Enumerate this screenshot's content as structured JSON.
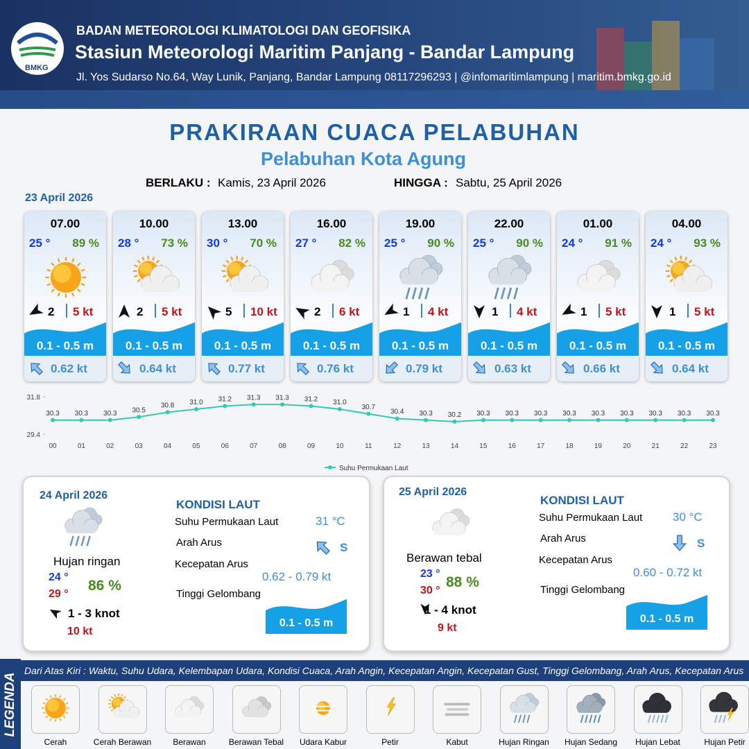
{
  "header": {
    "org": "BADAN METEOROLOGI KLIMATOLOGI DAN GEOFISIKA",
    "station": "Stasiun Meteorologi Maritim Panjang - Bandar Lampung",
    "address": "Jl. Yos Sudarso No.64, Way Lunik, Panjang, Bandar Lampung 08117296293 | @infomaritimlampung | maritim.bmkg.go.id",
    "logo": "BMKG"
  },
  "title": "PRAKIRAAN CUACA PELABUHAN",
  "subtitle": "Pelabuhan Kota Agung",
  "validity": {
    "from_label": "BERLAKU :",
    "from": "Kamis, 23 April 2026",
    "to_label": "HINGGA :",
    "to": "Sabtu, 25 April 2026"
  },
  "day1": {
    "date": "23 April 2026",
    "cards": [
      {
        "time": "07.00",
        "temp": "25 °",
        "humidity": "89 %",
        "wind": "2",
        "gust": "5 kt",
        "wave": "0.1 - 0.5 m",
        "current": "0.62 kt"
      },
      {
        "time": "10.00",
        "temp": "28 °",
        "humidity": "73 %",
        "wind": "2",
        "gust": "5 kt",
        "wave": "0.1 - 0.5 m",
        "current": "0.64 kt"
      },
      {
        "time": "13.00",
        "temp": "30 °",
        "humidity": "70 %",
        "wind": "5",
        "gust": "10 kt",
        "wave": "0.1 - 0.5 m",
        "current": "0.77 kt"
      },
      {
        "time": "16.00",
        "temp": "27 °",
        "humidity": "82 %",
        "wind": "2",
        "gust": "6 kt",
        "wave": "0.1 - 0.5 m",
        "current": "0.76 kt"
      },
      {
        "time": "19.00",
        "temp": "25 °",
        "humidity": "90 %",
        "wind": "1",
        "gust": "4 kt",
        "wave": "0.1 - 0.5 m",
        "current": "0.79 kt"
      },
      {
        "time": "22.00",
        "temp": "25 °",
        "humidity": "90 %",
        "wind": "1",
        "gust": "4 kt",
        "wave": "0.1 - 0.5 m",
        "current": "0.63 kt"
      },
      {
        "time": "01.00",
        "temp": "24 °",
        "humidity": "91 %",
        "wind": "1",
        "gust": "5 kt",
        "wave": "0.1 - 0.5 m",
        "current": "0.66 kt"
      },
      {
        "time": "04.00",
        "temp": "24 °",
        "humidity": "93 %",
        "wind": "1",
        "gust": "5 kt",
        "wave": "0.1 - 0.5 m",
        "current": "0.64 kt"
      }
    ]
  },
  "chart_data": {
    "type": "line",
    "categories": [
      "00",
      "01",
      "02",
      "03",
      "04",
      "05",
      "06",
      "07",
      "08",
      "09",
      "10",
      "11",
      "12",
      "13",
      "14",
      "15",
      "16",
      "17",
      "18",
      "19",
      "20",
      "21",
      "22",
      "23"
    ],
    "series": [
      {
        "name": "Suhu Permukaan Laut",
        "color": "#35c9b5",
        "values": [
          30.3,
          30.3,
          30.3,
          30.5,
          30.8,
          31.0,
          31.2,
          31.3,
          31.3,
          31.2,
          31.0,
          30.7,
          30.4,
          30.3,
          30.2,
          30.3,
          30.3,
          30.3,
          30.3,
          30.3,
          30.3,
          30.3,
          30.3,
          30.3
        ],
        "value_labels": [
          "30.3",
          "30.3",
          "30.3",
          "30.5",
          "30.8",
          "31.0",
          "31.2",
          "31.3",
          "31.3",
          "31.2",
          "31.0",
          "30.7",
          "30.4",
          "30.3",
          "30.2",
          "30.3",
          "30.3",
          "30.3",
          "30.3",
          "30.3",
          "30.3",
          "30.3",
          "30.3",
          "30.3"
        ]
      }
    ],
    "ylim": [
      29.4,
      31.8
    ],
    "yticks": [
      29.4,
      31.8
    ],
    "grid": false,
    "legend": "bottom"
  },
  "days": [
    {
      "date": "24 April 2026",
      "condition": "Hujan ringan",
      "temp_min": "24 °",
      "temp_max": "29 °",
      "humidity": "86 %",
      "wind": "1 - 3 knot",
      "gust": "10 kt",
      "sea": {
        "heading": "KONDISI LAUT",
        "sst_label": "Suhu Permukaan Laut",
        "sst": "31 °C",
        "dir_label": "Arah Arus",
        "dir": "S",
        "speed_label": "Kecepatan Arus",
        "speed": "0.62 - 0.79 kt",
        "wave_label": "Tinggi Gelombang",
        "wave": "0.1 - 0.5 m"
      }
    },
    {
      "date": "25 April 2026",
      "condition": "Berawan tebal",
      "temp_min": "23 °",
      "temp_max": "30 °",
      "humidity": "88 %",
      "wind": "1 - 4 knot",
      "gust": "9 kt",
      "sea": {
        "heading": "KONDISI LAUT",
        "sst_label": "Suhu Permukaan Laut",
        "sst": "30 °C",
        "dir_label": "Arah Arus",
        "dir": "S",
        "speed_label": "Kecepatan Arus",
        "speed": "0.60 - 0.72 kt",
        "wave_label": "Tinggi Gelombang",
        "wave": "0.1 - 0.5 m"
      }
    }
  ],
  "legend": {
    "title": "LEGENDA",
    "description": "Dari Atas Kiri : Waktu, Suhu Udara, Kelembapan Udara, Kondisi Cuaca, Arah Angin, Kecepatan Angin, Kecepatan Gust, Tinggi Gelombang, Arah Arus, Kecepatan Arus",
    "items": [
      "Cerah",
      "Cerah Berawan",
      "Berawan",
      "Berawan Tebal",
      "Udara Kabur",
      "Petir",
      "Kabut",
      "Hujan Ringan",
      "Hujan Sedang",
      "Hujan Lebat",
      "Hujan Petir"
    ]
  }
}
